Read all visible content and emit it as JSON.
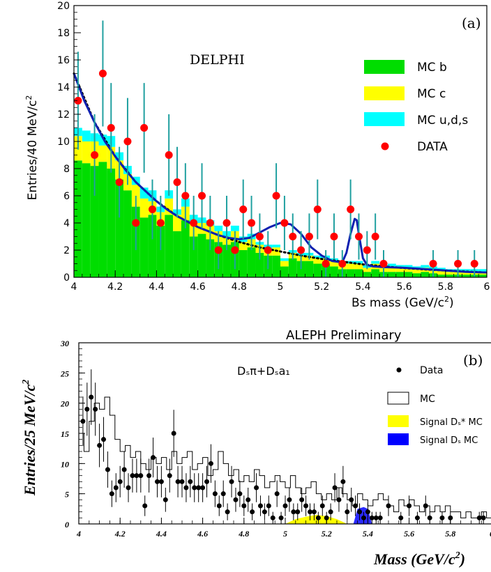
{
  "chart_data": [
    {
      "type": "bar",
      "title": "DELPHI",
      "panel_label": "(a)",
      "xlabel": "Bs mass (GeV/c²)",
      "ylabel": "Entries/40 MeV/c²",
      "xlim": [
        4.0,
        6.0
      ],
      "ylim": [
        0,
        20
      ],
      "xticks": [
        4,
        4.2,
        4.4,
        4.6,
        4.8,
        5,
        5.2,
        5.4,
        5.6,
        5.8,
        6
      ],
      "xtick_labels": [
        "4",
        "4.2",
        "4.4",
        "4.6",
        "4.8",
        "5",
        "5.2",
        "5.4",
        "5.6",
        "5.8",
        "6"
      ],
      "yticks": [
        0,
        2,
        4,
        6,
        8,
        10,
        12,
        14,
        16,
        18,
        20
      ],
      "ytick_labels": [
        "0",
        "2",
        "4",
        "6",
        "8",
        "10",
        "12",
        "14",
        "16",
        "18",
        "20"
      ],
      "bin_width": 0.04,
      "legend": [
        {
          "label": "MC b",
          "color": "#00dd00"
        },
        {
          "label": "MC c",
          "color": "#ffff00"
        },
        {
          "label": "MC u,d,s",
          "color": "#00ffff"
        },
        {
          "label": "DATA",
          "color": "#ff0000"
        }
      ],
      "mc_stack": {
        "bin_starts": [
          4.0,
          4.04,
          4.08,
          4.12,
          4.16,
          4.2,
          4.24,
          4.28,
          4.32,
          4.36,
          4.4,
          4.44,
          4.48,
          4.52,
          4.56,
          4.6,
          4.64,
          4.68,
          4.72,
          4.76,
          4.8,
          4.84,
          4.88,
          4.92,
          4.96,
          5.0,
          5.04,
          5.08,
          5.12,
          5.16,
          5.2,
          5.24,
          5.28,
          5.32,
          5.36,
          5.4,
          5.44,
          5.48,
          5.52,
          5.56,
          5.6,
          5.64,
          5.68,
          5.72,
          5.76,
          5.8,
          5.84,
          5.88,
          5.92,
          5.96
        ],
        "b": [
          8.6,
          8.4,
          8.2,
          8.5,
          8.0,
          7.2,
          6.4,
          5.2,
          4.4,
          4.6,
          3.8,
          4.6,
          3.4,
          4.2,
          3.0,
          3.2,
          2.8,
          2.6,
          2.4,
          2.6,
          2.0,
          2.2,
          1.8,
          1.6,
          1.6,
          0.8,
          1.4,
          1.2,
          1.2,
          1.0,
          1.0,
          0.8,
          0.6,
          0.6,
          0.6,
          0.4,
          0.6,
          0.4,
          0.4,
          0.4,
          0.4,
          0.3,
          0.4,
          0.3,
          0.2,
          0.2,
          0.2,
          0.2,
          0.2,
          0.2
        ],
        "c": [
          1.8,
          1.6,
          1.8,
          1.2,
          1.6,
          1.4,
          1.2,
          1.6,
          1.4,
          1.0,
          1.0,
          1.2,
          1.2,
          1.0,
          1.0,
          0.8,
          1.0,
          0.8,
          0.6,
          0.8,
          0.6,
          0.6,
          0.6,
          0.4,
          0.6,
          0.4,
          0.4,
          0.4,
          0.4,
          0.4,
          0.4,
          0.4,
          0.4,
          0.4,
          0.4,
          0.3,
          0.4,
          0.3,
          0.4,
          0.3,
          0.3,
          0.3,
          0.3,
          0.3,
          0.3,
          0.2,
          0.2,
          0.2,
          0.2,
          0.2
        ],
        "uds": [
          0.6,
          0.8,
          0.6,
          0.8,
          0.8,
          0.6,
          0.6,
          0.6,
          0.8,
          0.8,
          0.4,
          0.6,
          0.4,
          0.6,
          0.6,
          0.4,
          0.4,
          0.4,
          0.4,
          0.4,
          0.4,
          0.4,
          0.2,
          0.4,
          0.2,
          0.2,
          0.2,
          0.2,
          0.2,
          0.2,
          0.2,
          0.2,
          0.2,
          0.2,
          0.2,
          0.2,
          0.2,
          0.2,
          0.2,
          0.2,
          0.2,
          0.2,
          0.2,
          0.2,
          0.2,
          0.2,
          0.2,
          0.2,
          0.2,
          0.2
        ]
      },
      "data_points": {
        "x": [
          4.02,
          4.1,
          4.14,
          4.18,
          4.22,
          4.26,
          4.3,
          4.34,
          4.38,
          4.42,
          4.46,
          4.5,
          4.54,
          4.58,
          4.62,
          4.66,
          4.7,
          4.74,
          4.78,
          4.82,
          4.86,
          4.9,
          4.94,
          4.98,
          5.02,
          5.06,
          5.1,
          5.14,
          5.18,
          5.22,
          5.26,
          5.3,
          5.34,
          5.38,
          5.42,
          5.46,
          5.5,
          5.74,
          5.86,
          5.94
        ],
        "y": [
          13,
          9,
          15,
          11,
          7,
          10,
          4,
          11,
          5,
          4,
          9,
          7,
          6,
          4,
          6,
          4,
          2,
          4,
          2,
          5,
          4,
          3,
          2,
          6,
          4,
          3,
          2,
          3,
          5,
          1,
          3,
          1,
          5,
          3,
          2,
          3,
          1,
          1,
          1,
          1
        ],
        "err": [
          3.6,
          3.0,
          3.9,
          3.3,
          2.6,
          3.2,
          2.0,
          3.3,
          2.2,
          2.0,
          3.0,
          2.6,
          2.4,
          2.0,
          2.4,
          2.0,
          1.4,
          2.0,
          1.4,
          2.2,
          2.0,
          1.7,
          1.4,
          2.4,
          2.0,
          1.7,
          1.4,
          1.7,
          2.2,
          1.0,
          1.7,
          1.0,
          2.2,
          1.7,
          1.4,
          1.7,
          1.0,
          1.0,
          1.0,
          1.0
        ]
      },
      "fit_curve": {
        "name": "fit",
        "x": [
          4.0,
          4.05,
          4.1,
          4.15,
          4.2,
          4.25,
          4.3,
          4.35,
          4.4,
          4.45,
          4.5,
          4.55,
          4.6,
          4.65,
          4.7,
          4.75,
          4.8,
          4.85,
          4.9,
          4.95,
          5.0,
          5.05,
          5.1,
          5.15,
          5.2,
          5.25,
          5.3,
          5.32,
          5.34,
          5.36,
          5.37,
          5.38,
          5.4,
          5.42,
          5.45,
          5.5,
          5.6,
          5.7,
          5.8,
          5.9,
          6.0
        ],
        "y": [
          15.0,
          13.0,
          11.4,
          10.0,
          8.9,
          7.9,
          7.0,
          6.3,
          5.6,
          5.0,
          4.5,
          4.1,
          3.7,
          3.4,
          3.1,
          2.9,
          2.8,
          2.9,
          3.3,
          3.7,
          4.0,
          3.9,
          3.2,
          2.2,
          1.6,
          1.2,
          1.1,
          1.8,
          3.2,
          4.3,
          4.2,
          3.2,
          1.4,
          0.9,
          0.8,
          0.75,
          0.7,
          0.6,
          0.5,
          0.4,
          0.35
        ]
      },
      "background_curve": {
        "x": [
          4.0,
          4.1,
          4.2,
          4.3,
          4.4,
          4.5,
          4.6,
          4.7,
          4.8,
          4.9,
          5.0,
          5.1,
          5.2,
          5.3,
          5.4,
          5.5,
          5.6,
          5.7,
          5.8,
          5.9,
          6.0
        ],
        "y": [
          15.0,
          11.4,
          8.9,
          7.0,
          5.6,
          4.5,
          3.7,
          3.1,
          2.6,
          2.2,
          1.9,
          1.6,
          1.35,
          1.15,
          0.95,
          0.8,
          0.68,
          0.58,
          0.5,
          0.42,
          0.35
        ]
      }
    },
    {
      "type": "bar",
      "title": "ALEPH Preliminary",
      "panel_label": "(b)",
      "annotation": "Dₛπ+Dₛa₁",
      "xlabel": "Mass (GeV/c²)",
      "ylabel": "Entries/25 MeV/c²",
      "xlim": [
        4.0,
        6.0
      ],
      "ylim": [
        0,
        30
      ],
      "xticks": [
        4,
        4.2,
        4.4,
        4.6,
        4.8,
        5,
        5.2,
        5.4,
        5.6,
        5.8,
        6
      ],
      "xtick_labels": [
        "4",
        "4.2",
        "4.4",
        "4.6",
        "4.8",
        "5",
        "5.2",
        "5.4",
        "5.6",
        "5.8",
        "6"
      ],
      "yticks": [
        0,
        5,
        10,
        15,
        20,
        25,
        30
      ],
      "ytick_labels": [
        "0",
        "5",
        "10",
        "15",
        "20",
        "25",
        "30"
      ],
      "bin_width": 0.025,
      "legend": [
        {
          "label": "Data",
          "marker": "dot"
        },
        {
          "label": "MC",
          "marker": "open-box"
        },
        {
          "label": "Signal Dₛ* MC",
          "color": "#ffff00"
        },
        {
          "label": "Signal Dₛ MC",
          "color": "#0000ff"
        }
      ],
      "mc_histogram": {
        "values": [
          15,
          12,
          17,
          20,
          19,
          21,
          18,
          14,
          12,
          13,
          11,
          12,
          10,
          9,
          11,
          10,
          11,
          9,
          12,
          10,
          11,
          12,
          9,
          10,
          11,
          8,
          9,
          12,
          10,
          8,
          9,
          7,
          8,
          7,
          9,
          8,
          6,
          7,
          8,
          7,
          6,
          8,
          6,
          5,
          6,
          7,
          5,
          4,
          5,
          4,
          6,
          5,
          4,
          3,
          5,
          4,
          3,
          4,
          5,
          4,
          3,
          2,
          4,
          3,
          4,
          3,
          2,
          3,
          2,
          3,
          2,
          3,
          2,
          2,
          1,
          2,
          1,
          1,
          2,
          1
        ]
      },
      "signal_ds_star": {
        "x": [
          5.0,
          5.05,
          5.1,
          5.15,
          5.2,
          5.25,
          5.3
        ],
        "y": [
          0.0,
          0.8,
          1.2,
          1.5,
          1.3,
          0.8,
          0.0
        ]
      },
      "signal_ds": {
        "x": [
          5.33,
          5.35,
          5.38,
          5.4,
          5.42
        ],
        "y": [
          0.0,
          2.5,
          2.8,
          2.5,
          0.0
        ]
      },
      "data_points": {
        "x": [
          4.02,
          4.04,
          4.06,
          4.08,
          4.1,
          4.12,
          4.14,
          4.16,
          4.18,
          4.2,
          4.22,
          4.24,
          4.26,
          4.28,
          4.3,
          4.32,
          4.34,
          4.36,
          4.38,
          4.4,
          4.42,
          4.44,
          4.46,
          4.48,
          4.5,
          4.52,
          4.54,
          4.56,
          4.58,
          4.6,
          4.62,
          4.64,
          4.66,
          4.68,
          4.7,
          4.72,
          4.74,
          4.76,
          4.78,
          4.8,
          4.82,
          4.84,
          4.86,
          4.88,
          4.9,
          4.92,
          4.94,
          4.96,
          4.98,
          5.0,
          5.02,
          5.04,
          5.06,
          5.08,
          5.1,
          5.12,
          5.14,
          5.16,
          5.18,
          5.2,
          5.22,
          5.24,
          5.26,
          5.28,
          5.3,
          5.32,
          5.34,
          5.36,
          5.38,
          5.4,
          5.42,
          5.44,
          5.46,
          5.5,
          5.56,
          5.6,
          5.64,
          5.68,
          5.7,
          5.76,
          5.8,
          5.94,
          5.96
        ],
        "y": [
          17,
          19,
          21,
          19,
          13,
          14,
          9,
          5,
          6,
          7,
          9,
          6,
          8,
          8,
          8,
          3,
          8,
          11,
          7,
          7,
          4,
          8,
          15,
          7,
          7,
          6,
          7,
          6,
          6,
          6,
          7,
          10,
          5,
          3,
          5,
          2,
          7,
          4,
          5,
          3,
          4,
          2,
          6,
          3,
          2,
          3,
          1,
          5,
          1,
          3,
          4,
          2,
          2,
          4,
          3,
          2,
          2,
          1,
          3,
          1,
          2,
          6,
          4,
          7,
          2,
          4,
          3,
          2,
          1,
          2,
          1,
          1,
          1,
          3,
          1,
          3,
          1,
          3,
          1,
          1,
          1,
          1,
          1
        ],
        "err": [
          4.1,
          4.4,
          4.6,
          4.4,
          3.6,
          3.7,
          3.0,
          2.2,
          2.4,
          2.6,
          3.0,
          2.4,
          2.8,
          2.8,
          2.8,
          1.7,
          2.8,
          3.3,
          2.6,
          2.6,
          2.0,
          2.8,
          3.9,
          2.6,
          2.6,
          2.4,
          2.6,
          2.4,
          2.4,
          2.4,
          2.6,
          3.2,
          2.2,
          1.7,
          2.2,
          1.4,
          2.6,
          2.0,
          2.2,
          1.7,
          2.0,
          1.4,
          2.4,
          1.7,
          1.4,
          1.7,
          1.0,
          2.2,
          1.0,
          1.7,
          2.0,
          1.4,
          1.4,
          2.0,
          1.7,
          1.4,
          1.4,
          1.0,
          1.7,
          1.0,
          1.4,
          2.4,
          2.0,
          2.6,
          1.4,
          2.0,
          1.7,
          1.4,
          1.0,
          1.4,
          1.0,
          1.0,
          1.0,
          1.7,
          1.0,
          1.7,
          1.0,
          1.7,
          1.0,
          1.0,
          1.0,
          1.0,
          1.0
        ]
      }
    }
  ]
}
